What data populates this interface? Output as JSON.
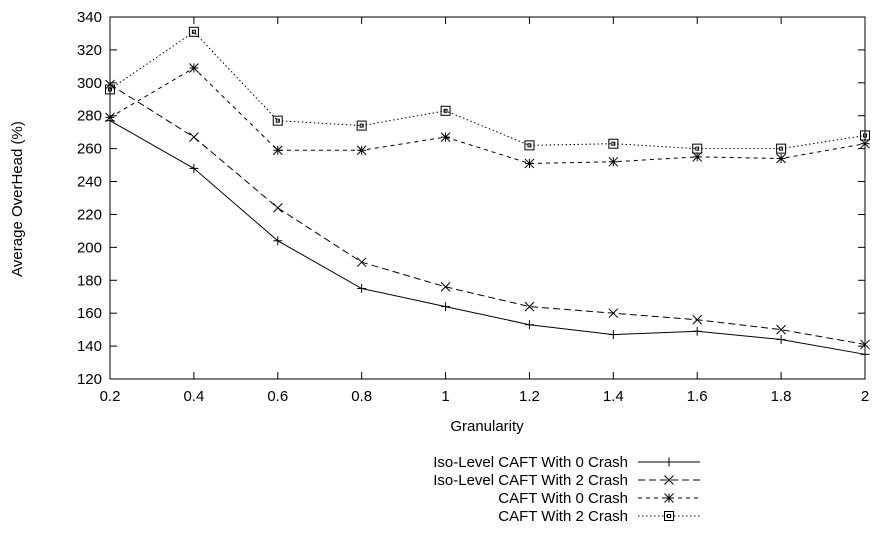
{
  "chart_data": {
    "type": "line",
    "title": "",
    "xlabel": "Granularity",
    "ylabel": "Average OverHead (%)",
    "xlim": [
      0.2,
      2
    ],
    "ylim": [
      120,
      340
    ],
    "x": [
      0.2,
      0.4,
      0.6,
      0.8,
      1.0,
      1.2,
      1.4,
      1.6,
      1.8,
      2.0
    ],
    "xticks": [
      "0.2",
      "0.4",
      "0.6",
      "0.8",
      "1",
      "1.2",
      "1.4",
      "1.6",
      "1.8",
      "2"
    ],
    "yticks": [
      "120",
      "140",
      "160",
      "180",
      "200",
      "220",
      "240",
      "260",
      "280",
      "300",
      "320",
      "340"
    ],
    "grid": false,
    "legend_position": "bottom-center",
    "series": [
      {
        "name": "Iso-Level CAFT With 0 Crash",
        "marker": "plus",
        "dash": "solid",
        "values": [
          277,
          248,
          204,
          175,
          164,
          153,
          147,
          149,
          144,
          135
        ]
      },
      {
        "name": "Iso-Level CAFT With 2 Crash",
        "marker": "cross",
        "dash": "dashed",
        "values": [
          299,
          267,
          224,
          191,
          176,
          164,
          160,
          156,
          150,
          141
        ]
      },
      {
        "name": "CAFT With 0 Crash",
        "marker": "star",
        "dash": "short-dash",
        "values": [
          279,
          309,
          259,
          259,
          267,
          251,
          252,
          255,
          254,
          263
        ]
      },
      {
        "name": "CAFT With 2 Crash",
        "marker": "square",
        "dash": "dotted",
        "values": [
          296,
          331,
          277,
          274,
          283,
          262,
          263,
          260,
          260,
          268
        ]
      }
    ]
  }
}
